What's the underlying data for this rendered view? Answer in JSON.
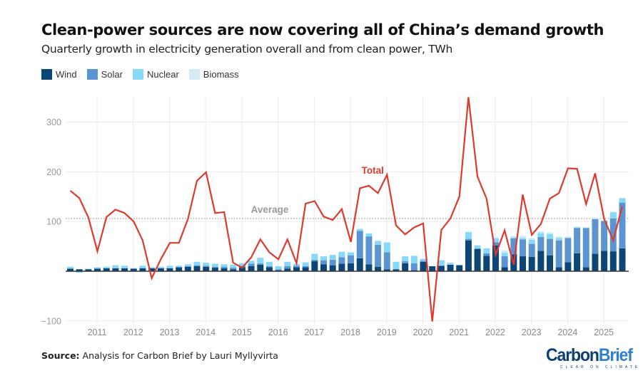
{
  "header": {
    "title": "Clean-power sources are now covering all of China’s demand growth",
    "subtitle": "Quarterly growth in electricity generation overall and from clean power, TWh"
  },
  "legend": [
    {
      "label": "Wind",
      "color": "#0b4676"
    },
    {
      "label": "Solar",
      "color": "#5b95d1"
    },
    {
      "label": "Nuclear",
      "color": "#86d9fb"
    },
    {
      "label": "Biomass",
      "color": "#d2ebf4"
    }
  ],
  "footer": {
    "source_label": "Source:",
    "source_text": "Analysis for Carbon Brief by Lauri Myllyvirta",
    "logo_carbon": "Carbon",
    "logo_brief": "Brief",
    "logo_tagline": "CLEAR ON CLIMATE"
  },
  "chart_data": {
    "type": "bar",
    "title": "Clean-power sources are now covering all of China’s demand growth",
    "subtitle": "Quarterly growth in electricity generation overall and from clean power, TWh",
    "xlabel": "",
    "ylabel": "TWh",
    "ylim": [
      -100,
      350
    ],
    "yticks": [
      -100,
      100,
      200,
      300
    ],
    "ytick_labels": [
      "−100",
      "100",
      "200",
      "300"
    ],
    "xticks": [
      "2011",
      "2012",
      "2013",
      "2014",
      "2015",
      "2016",
      "2017",
      "2018",
      "2019",
      "2020",
      "2021",
      "2022",
      "2023",
      "2024",
      "2025"
    ],
    "grid": true,
    "legend_position": "top-left",
    "stacked": true,
    "categories": [
      "2010Q2",
      "2010Q3",
      "2010Q4",
      "2011Q1",
      "2011Q2",
      "2011Q3",
      "2011Q4",
      "2012Q1",
      "2012Q2",
      "2012Q3",
      "2012Q4",
      "2013Q1",
      "2013Q2",
      "2013Q3",
      "2013Q4",
      "2014Q1",
      "2014Q2",
      "2014Q3",
      "2014Q4",
      "2015Q1",
      "2015Q2",
      "2015Q3",
      "2015Q4",
      "2016Q1",
      "2016Q2",
      "2016Q3",
      "2016Q4",
      "2017Q1",
      "2017Q2",
      "2017Q3",
      "2017Q4",
      "2018Q1",
      "2018Q2",
      "2018Q3",
      "2018Q4",
      "2019Q1",
      "2019Q2",
      "2019Q3",
      "2019Q4",
      "2020Q1",
      "2020Q2",
      "2020Q3",
      "2020Q4",
      "2021Q1",
      "2021Q2",
      "2021Q3",
      "2021Q4",
      "2022Q1",
      "2022Q2",
      "2022Q3",
      "2022Q4",
      "2023Q1",
      "2023Q2",
      "2023Q3",
      "2023Q4",
      "2024Q1",
      "2024Q2",
      "2024Q3",
      "2024Q4",
      "2025Q1",
      "2025Q2",
      "2025Q3"
    ],
    "series": [
      {
        "name": "Wind",
        "color": "#0b4676",
        "values": [
          5,
          4,
          4,
          5,
          6,
          6,
          6,
          5,
          6,
          6,
          6,
          6,
          8,
          9,
          10,
          9,
          7,
          6,
          4,
          8,
          10,
          13,
          8,
          2,
          5,
          8,
          8,
          20,
          14,
          12,
          15,
          16,
          26,
          14,
          9,
          4,
          4,
          16,
          2,
          19,
          10,
          11,
          13,
          12,
          62,
          45,
          31,
          52,
          8,
          34,
          30,
          29,
          41,
          32,
          8,
          18,
          36,
          8,
          35,
          41,
          40,
          46
        ]
      },
      {
        "name": "Solar",
        "color": "#5b95d1",
        "values": [
          0,
          0,
          0,
          0,
          0,
          0,
          0,
          0,
          0,
          0,
          0,
          0,
          0,
          1,
          2,
          2,
          2,
          3,
          3,
          3,
          5,
          3,
          2,
          2,
          5,
          3,
          2,
          3,
          8,
          11,
          13,
          16,
          55,
          56,
          44,
          34,
          0,
          4,
          14,
          2,
          0,
          0,
          0,
          0,
          3,
          0,
          5,
          6,
          22,
          32,
          34,
          26,
          28,
          33,
          54,
          49,
          51,
          79,
          70,
          60,
          66,
          92
        ]
      },
      {
        "name": "Nuclear",
        "color": "#86d9fb",
        "values": [
          4,
          -3,
          1,
          3,
          3,
          6,
          5,
          1,
          5,
          2,
          3,
          5,
          3,
          4,
          7,
          6,
          6,
          5,
          6,
          5,
          6,
          11,
          9,
          6,
          9,
          4,
          8,
          12,
          8,
          10,
          11,
          6,
          4,
          6,
          8,
          20,
          15,
          10,
          15,
          4,
          0,
          11,
          4,
          1,
          14,
          7,
          10,
          8,
          7,
          2,
          3,
          8,
          8,
          10,
          5,
          0,
          1,
          0,
          0,
          0,
          13,
          9
        ]
      },
      {
        "name": "Biomass",
        "color": "#d2ebf4",
        "values": [
          0,
          0,
          0,
          0,
          0,
          0,
          0,
          0,
          0,
          0,
          0,
          0,
          0,
          0,
          0,
          0,
          0,
          0,
          0,
          0,
          0,
          0,
          0,
          0,
          0,
          0,
          0,
          0,
          0,
          0,
          0,
          0,
          0,
          0,
          0,
          0,
          0,
          0,
          0,
          0,
          0,
          0,
          0,
          0,
          0,
          0,
          0,
          3,
          5,
          3,
          4,
          4,
          3,
          3,
          3,
          3,
          2,
          2,
          3,
          2,
          0,
          0
        ]
      },
      {
        "name": "Total",
        "type": "line",
        "color": "#dd3a2e",
        "values": [
          162,
          147,
          108,
          40,
          109,
          124,
          117,
          100,
          62,
          -14,
          24,
          57,
          57,
          105,
          182,
          199,
          117,
          119,
          17,
          7,
          28,
          64,
          38,
          24,
          64,
          16,
          136,
          141,
          110,
          103,
          125,
          59,
          167,
          172,
          157,
          194,
          92,
          74,
          88,
          96,
          -101,
          83,
          106,
          150,
          350,
          190,
          146,
          33,
          82,
          13,
          154,
          73,
          95,
          146,
          157,
          207,
          206,
          135,
          197,
          105,
          62,
          131
        ]
      }
    ],
    "annotations": [
      {
        "text": "Total",
        "near": "2019Q1"
      },
      {
        "text": "Average",
        "value": 106,
        "style": "dotted-line"
      }
    ]
  }
}
